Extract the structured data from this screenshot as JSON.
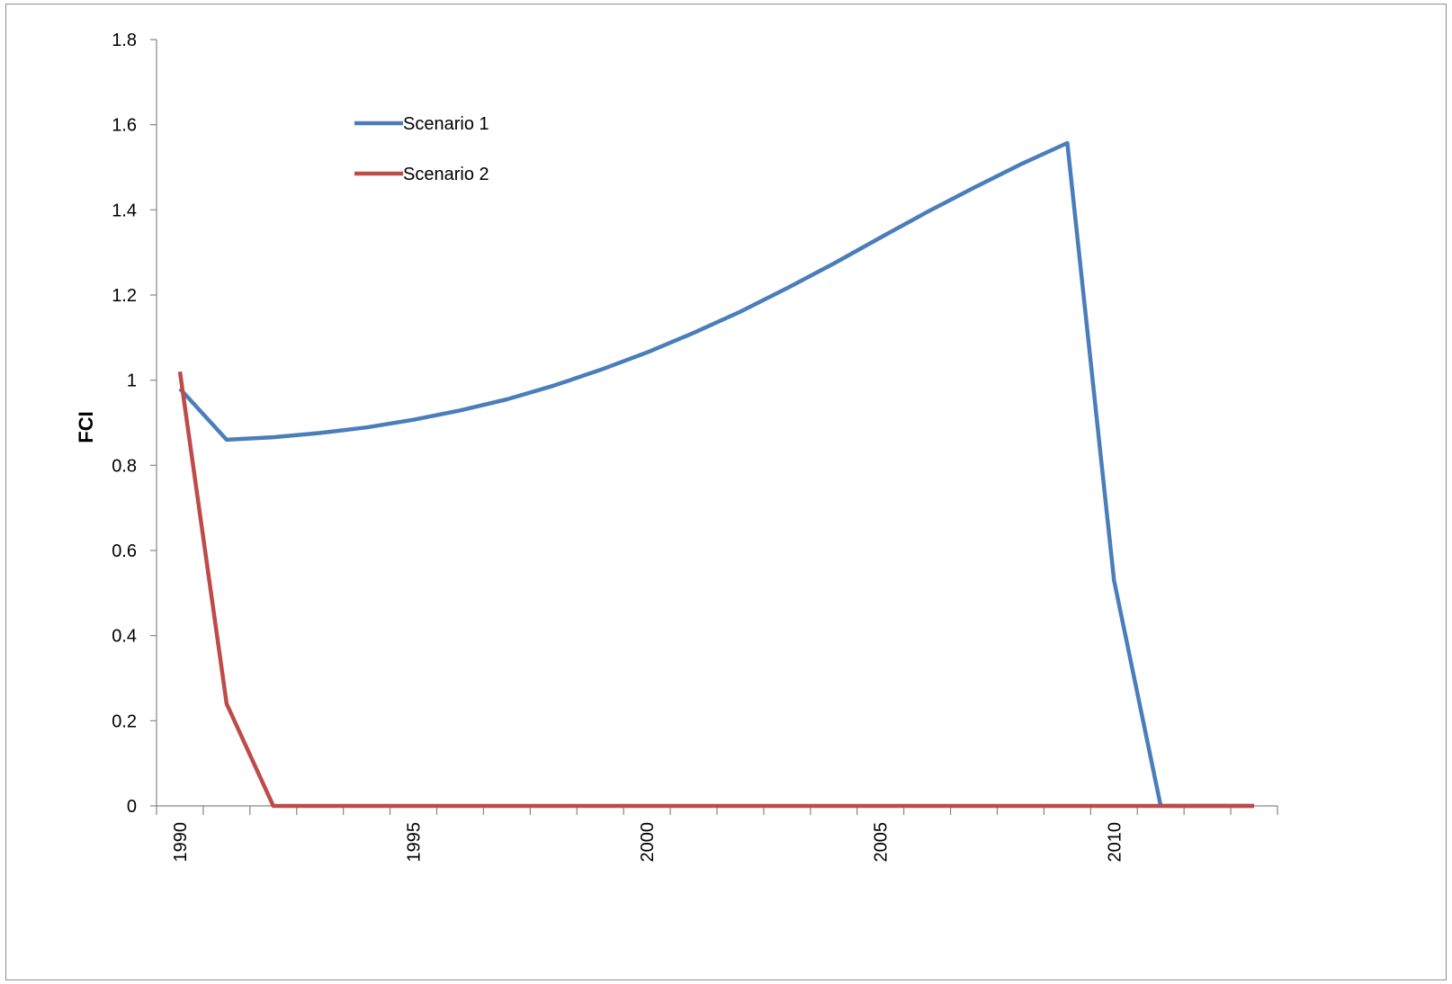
{
  "chart_data": {
    "type": "line",
    "title": "",
    "xlabel": "",
    "ylabel": "FCI",
    "ylim": [
      0,
      1.8
    ],
    "yticks": [
      "0",
      "0.2",
      "0.4",
      "0.6",
      "0.8",
      "1",
      "1.2",
      "1.4",
      "1.6",
      "1.8"
    ],
    "xlim": [
      1989.5,
      2013.5
    ],
    "xticks_labeled": [
      1990,
      1995,
      2000,
      2005,
      2010
    ],
    "grid": false,
    "legend_position": "top-left",
    "x": [
      1990,
      1991,
      1992,
      1993,
      1994,
      1995,
      1996,
      1997,
      1998,
      1999,
      2000,
      2001,
      2002,
      2003,
      2004,
      2005,
      2006,
      2007,
      2008,
      2009,
      2010,
      2011,
      2012,
      2013
    ],
    "series": [
      {
        "name": "Scenario 1",
        "color": "#4a7ebb",
        "values": [
          0.98,
          0.86,
          0.866,
          0.876,
          0.889,
          0.907,
          0.929,
          0.955,
          0.987,
          1.024,
          1.065,
          1.111,
          1.161,
          1.216,
          1.274,
          1.335,
          1.395,
          1.452,
          1.507,
          1.557,
          0.53,
          0.0,
          0.0,
          0.0
        ]
      },
      {
        "name": "Scenario 2",
        "color": "#be4b48",
        "values": [
          1.02,
          0.24,
          0.0,
          0.0,
          0.0,
          0.0,
          0.0,
          0.0,
          0.0,
          0.0,
          0.0,
          0.0,
          0.0,
          0.0,
          0.0,
          0.0,
          0.0,
          0.0,
          0.0,
          0.0,
          0.0,
          0.0,
          0.0,
          0.0
        ]
      }
    ]
  }
}
